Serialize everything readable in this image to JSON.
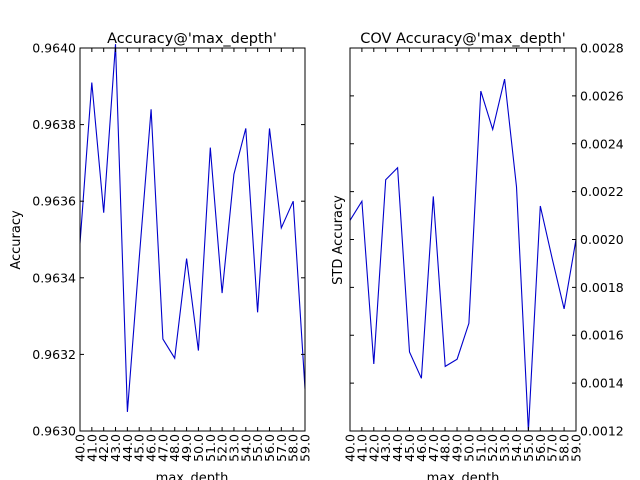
{
  "chart_data": [
    {
      "type": "line",
      "title": "Accuracy@'max_depth'",
      "xlabel": "max_depth",
      "ylabel": "Accuracy",
      "categories": [
        "40.0",
        "41.0",
        "42.0",
        "43.0",
        "44.0",
        "45.0",
        "46.0",
        "47.0",
        "48.0",
        "49.0",
        "50.0",
        "51.0",
        "52.0",
        "53.0",
        "54.0",
        "55.0",
        "56.0",
        "57.0",
        "58.0",
        "59.0"
      ],
      "x": [
        40,
        41,
        42,
        43,
        44,
        45,
        46,
        47,
        48,
        49,
        50,
        51,
        52,
        53,
        54,
        55,
        56,
        57,
        58,
        59
      ],
      "values": [
        0.96349,
        0.96391,
        0.96357,
        0.96401,
        0.96305,
        0.96345,
        0.96384,
        0.96324,
        0.96319,
        0.96345,
        0.96321,
        0.96374,
        0.96336,
        0.96367,
        0.96379,
        0.96331,
        0.96379,
        0.96353,
        0.9636,
        0.96311
      ],
      "ylim": [
        0.963,
        0.964
      ],
      "yticks": [
        "0.9630",
        "0.9632",
        "0.9634",
        "0.9636",
        "0.9638",
        "0.9640"
      ],
      "ytick_values": [
        0.963,
        0.9632,
        0.9634,
        0.9636,
        0.9638,
        0.964
      ],
      "y_axis_side": "left",
      "line_color": "#0000cc",
      "grid": false
    },
    {
      "type": "line",
      "title": "COV Accuracy@'max_depth'",
      "xlabel": "max_depth",
      "ylabel": "STD Accuracy",
      "categories": [
        "40.0",
        "41.0",
        "42.0",
        "43.0",
        "44.0",
        "45.0",
        "46.0",
        "47.0",
        "48.0",
        "49.0",
        "50.0",
        "51.0",
        "52.0",
        "53.0",
        "54.0",
        "55.0",
        "56.0",
        "57.0",
        "58.0",
        "59.0"
      ],
      "x": [
        40,
        41,
        42,
        43,
        44,
        45,
        46,
        47,
        48,
        49,
        50,
        51,
        52,
        53,
        54,
        55,
        56,
        57,
        58,
        59
      ],
      "values": [
        0.00208,
        0.00216,
        0.00148,
        0.00225,
        0.0023,
        0.00153,
        0.00142,
        0.00218,
        0.00147,
        0.0015,
        0.00165,
        0.00262,
        0.00246,
        0.00267,
        0.00222,
        0.0012,
        0.00214,
        0.00192,
        0.00171,
        0.002
      ],
      "ylim": [
        0.0012,
        0.0028
      ],
      "yticks": [
        "0.0012",
        "0.0014",
        "0.0016",
        "0.0018",
        "0.0020",
        "0.0022",
        "0.0024",
        "0.0026",
        "0.0028"
      ],
      "ytick_values": [
        0.0012,
        0.0014,
        0.0016,
        0.0018,
        0.002,
        0.0022,
        0.0024,
        0.0026,
        0.0028
      ],
      "y_axis_side": "right",
      "line_color": "#0000cc",
      "grid": false
    }
  ]
}
